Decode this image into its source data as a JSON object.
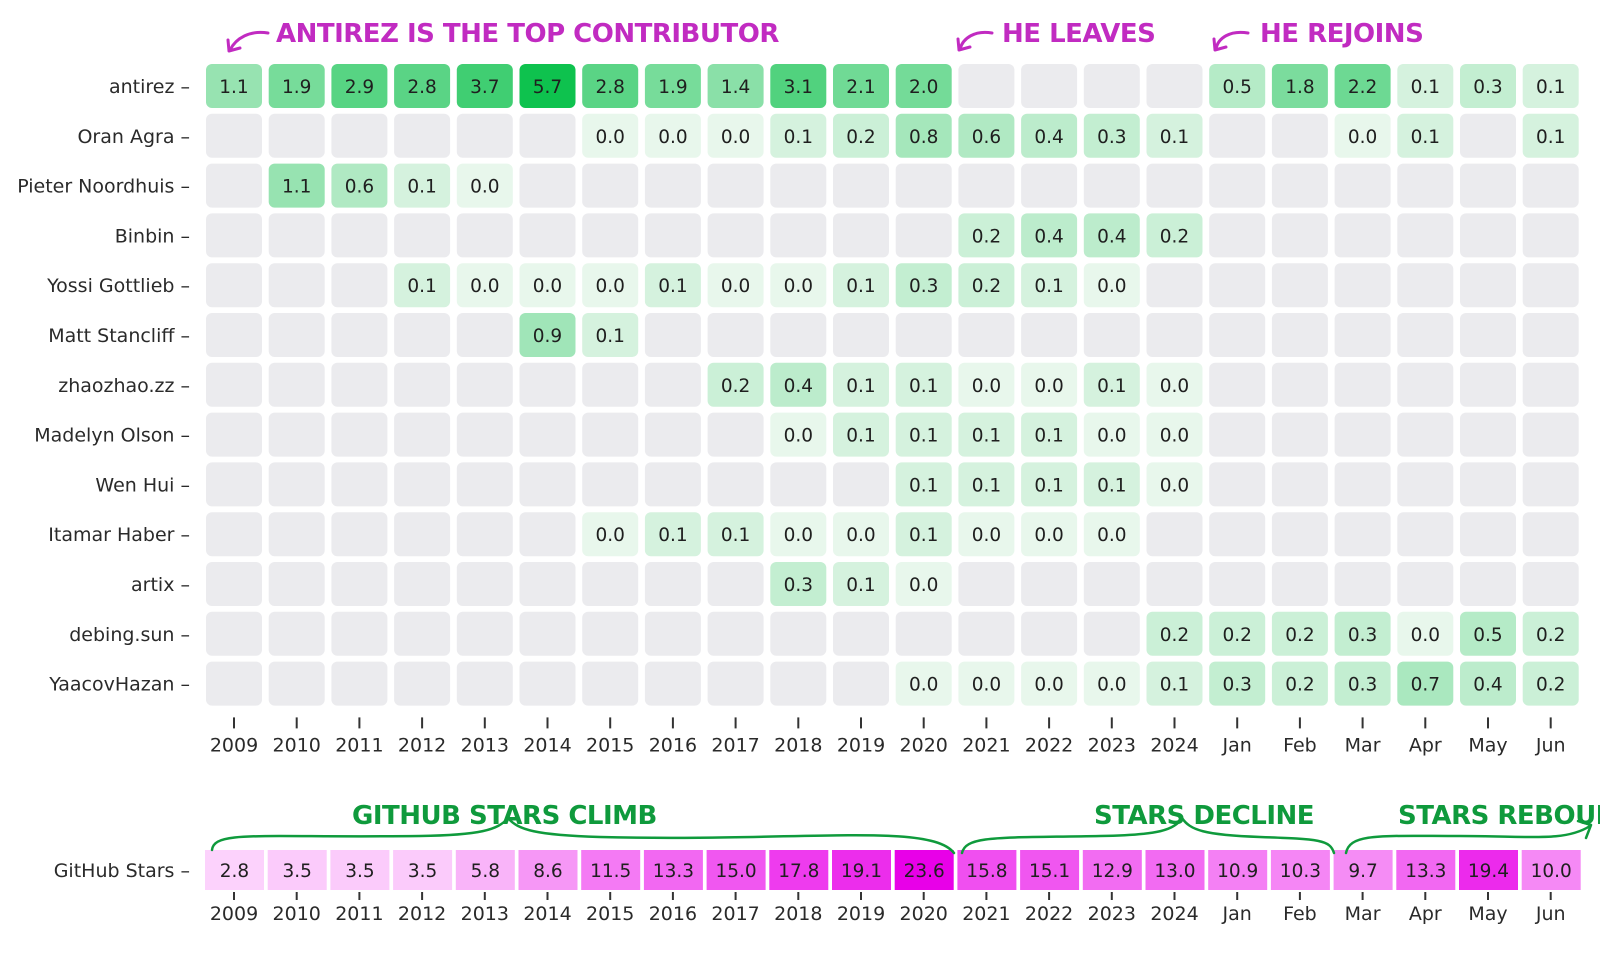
{
  "chart_data": [
    {
      "type": "heatmap",
      "title": "",
      "x": [
        "2009",
        "2010",
        "2011",
        "2012",
        "2013",
        "2014",
        "2015",
        "2016",
        "2017",
        "2018",
        "2019",
        "2020",
        "2021",
        "2022",
        "2023",
        "2024",
        "Jan",
        "Feb",
        "Mar",
        "Apr",
        "May",
        "Jun"
      ],
      "y": [
        "antirez",
        "Oran Agra",
        "Pieter Noordhuis",
        "Binbin",
        "Yossi Gottlieb",
        "Matt Stancliff",
        "zhaozhao.zz",
        "Madelyn Olson",
        "Wen Hui",
        "Itamar Haber",
        "artix",
        "debing.sun",
        "YaacovHazan"
      ],
      "values": [
        [
          1.1,
          1.9,
          2.9,
          2.8,
          3.7,
          5.7,
          2.8,
          1.9,
          1.4,
          3.1,
          2.1,
          2.0,
          null,
          null,
          null,
          null,
          0.5,
          1.8,
          2.2,
          0.1,
          0.3,
          0.1
        ],
        [
          null,
          null,
          null,
          null,
          null,
          null,
          0.0,
          0.0,
          0.0,
          0.1,
          0.2,
          0.8,
          0.6,
          0.4,
          0.3,
          0.1,
          null,
          null,
          0.0,
          0.1,
          null,
          0.1
        ],
        [
          null,
          1.1,
          0.6,
          0.1,
          0.0,
          null,
          null,
          null,
          null,
          null,
          null,
          null,
          null,
          null,
          null,
          null,
          null,
          null,
          null,
          null,
          null,
          null
        ],
        [
          null,
          null,
          null,
          null,
          null,
          null,
          null,
          null,
          null,
          null,
          null,
          null,
          0.2,
          0.4,
          0.4,
          0.2,
          null,
          null,
          null,
          null,
          null,
          null
        ],
        [
          null,
          null,
          null,
          0.1,
          0.0,
          0.0,
          0.0,
          0.1,
          0.0,
          0.0,
          0.1,
          0.3,
          0.2,
          0.1,
          0.0,
          null,
          null,
          null,
          null,
          null,
          null,
          null
        ],
        [
          null,
          null,
          null,
          null,
          null,
          0.9,
          0.1,
          null,
          null,
          null,
          null,
          null,
          null,
          null,
          null,
          null,
          null,
          null,
          null,
          null,
          null,
          null
        ],
        [
          null,
          null,
          null,
          null,
          null,
          null,
          null,
          null,
          0.2,
          0.4,
          0.1,
          0.1,
          0.0,
          0.0,
          0.1,
          0.0,
          null,
          null,
          null,
          null,
          null,
          null
        ],
        [
          null,
          null,
          null,
          null,
          null,
          null,
          null,
          null,
          null,
          0.0,
          0.1,
          0.1,
          0.1,
          0.1,
          0.0,
          0.0,
          null,
          null,
          null,
          null,
          null,
          null
        ],
        [
          null,
          null,
          null,
          null,
          null,
          null,
          null,
          null,
          null,
          null,
          null,
          0.1,
          0.1,
          0.1,
          0.1,
          0.0,
          null,
          null,
          null,
          null,
          null,
          null
        ],
        [
          null,
          null,
          null,
          null,
          null,
          null,
          0.0,
          0.1,
          0.1,
          0.0,
          0.0,
          0.1,
          0.0,
          0.0,
          0.0,
          null,
          null,
          null,
          null,
          null,
          null,
          null
        ],
        [
          null,
          null,
          null,
          null,
          null,
          null,
          null,
          null,
          null,
          0.3,
          0.1,
          0.0,
          null,
          null,
          null,
          null,
          null,
          null,
          null,
          null,
          null,
          null
        ],
        [
          null,
          null,
          null,
          null,
          null,
          null,
          null,
          null,
          null,
          null,
          null,
          null,
          null,
          null,
          null,
          0.2,
          0.2,
          0.2,
          0.3,
          0.0,
          0.5,
          0.2
        ],
        [
          null,
          null,
          null,
          null,
          null,
          null,
          null,
          null,
          null,
          null,
          null,
          0.0,
          0.0,
          0.0,
          0.0,
          0.1,
          0.3,
          0.2,
          0.3,
          0.7,
          0.4,
          0.2
        ]
      ],
      "color_scale": {
        "low": "#e8f7ec",
        "high": "#0ec24e",
        "empty": "#ebebee"
      },
      "annotations": [
        "ANTIREZ IS THE TOP CONTRIBUTOR",
        "HE LEAVES",
        "HE REJOINS"
      ]
    },
    {
      "type": "heatmap",
      "title": "",
      "x": [
        "2009",
        "2010",
        "2011",
        "2012",
        "2013",
        "2014",
        "2015",
        "2016",
        "2017",
        "2018",
        "2019",
        "2020",
        "2021",
        "2022",
        "2023",
        "2024",
        "Jan",
        "Feb",
        "Mar",
        "Apr",
        "May",
        "Jun"
      ],
      "y": [
        "GitHub Stars"
      ],
      "values": [
        [
          2.8,
          3.5,
          3.5,
          3.5,
          5.8,
          8.6,
          11.5,
          13.3,
          15.0,
          17.8,
          19.1,
          23.6,
          15.8,
          15.1,
          12.9,
          13.0,
          10.9,
          10.3,
          9.7,
          13.3,
          19.4,
          10.0
        ]
      ],
      "color_scale": {
        "low": "#fcd2fc",
        "high": "#e800e8"
      },
      "annotations": [
        "GITHUB STARS CLIMB",
        "STARS DECLINE",
        "STARS REBOUND"
      ]
    }
  ]
}
